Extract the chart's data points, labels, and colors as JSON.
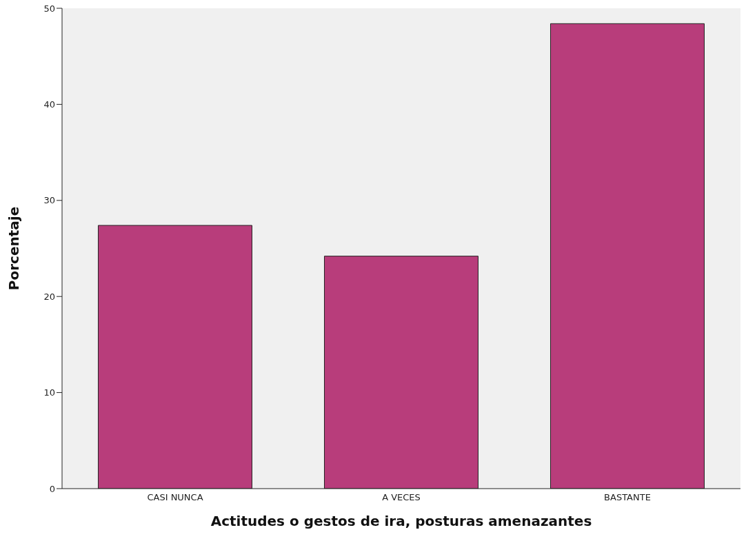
{
  "chart_data": {
    "type": "bar",
    "xlabel": "Actitudes o gestos de ira, posturas amenazantes",
    "ylabel": "Porcentaje",
    "categories": [
      "CASI NUNCA",
      "A VECES",
      "BASTANTE"
    ],
    "values": [
      27.4,
      24.2,
      48.4
    ],
    "color": "#b83d7b",
    "ylim": [
      0,
      50
    ],
    "yticks": [
      0,
      10,
      20,
      30,
      40,
      50
    ],
    "grid": false
  }
}
